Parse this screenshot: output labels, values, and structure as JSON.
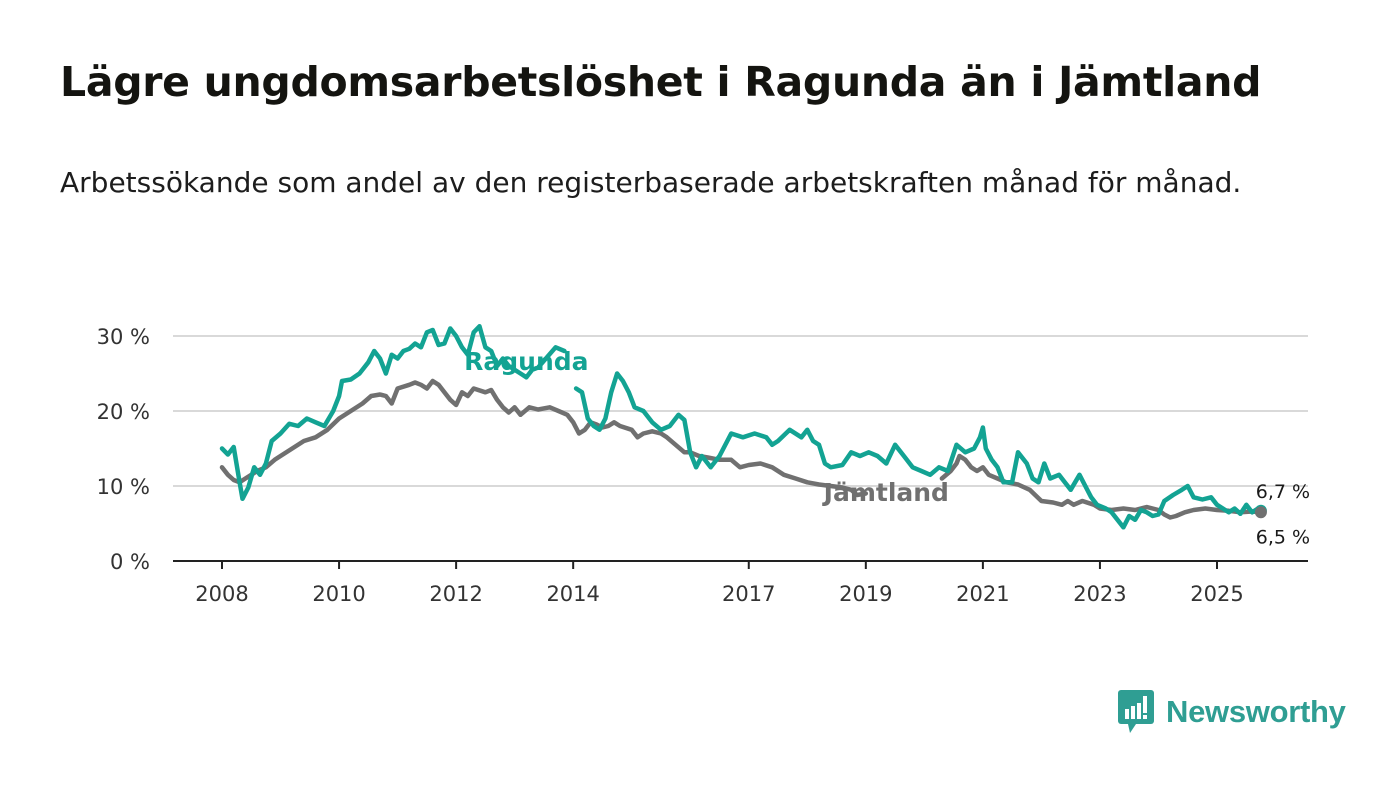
{
  "title": "Lägre ungdomsarbetslöshet i Ragunda än i Jämtland",
  "subtitle": "Arbetssökande som andel av den registerbaserade arbetskraften månad för månad.",
  "brand": {
    "name": "Newsworthy",
    "color": "#2f9e93",
    "icon": "bar-chart-speech-bubble-icon"
  },
  "colors": {
    "ragunda": "#13a393",
    "jamtland": "#707070",
    "grid": "#d9d9d9",
    "axis": "#222222"
  },
  "chart_data": {
    "type": "line",
    "title": "Lägre ungdomsarbetslöshet i Ragunda än i Jämtland",
    "xlabel": "",
    "ylabel": "",
    "xlim": [
      2007.4,
      2026.9
    ],
    "ylim": [
      0,
      30
    ],
    "x_ticks": [
      2008,
      2010,
      2012,
      2014,
      2017,
      2019,
      2021,
      2023,
      2025
    ],
    "y_ticks": [
      0,
      10,
      20,
      30
    ],
    "y_tick_labels": [
      "0 %",
      "10 %",
      "20 %",
      "30 %"
    ],
    "grid": true,
    "series": [
      {
        "name": "Ragunda",
        "label": "Ragunda",
        "end_label": "6,7 %",
        "points": [
          [
            2008.0,
            15.0
          ],
          [
            2008.1,
            14.2
          ],
          [
            2008.2,
            15.2
          ],
          [
            2008.3,
            10.5
          ],
          [
            2008.35,
            8.3
          ],
          [
            2008.45,
            9.8
          ],
          [
            2008.55,
            12.5
          ],
          [
            2008.65,
            11.5
          ],
          [
            2008.75,
            13.0
          ],
          [
            2008.85,
            16.0
          ],
          [
            2009.0,
            17.0
          ],
          [
            2009.15,
            18.3
          ],
          [
            2009.3,
            18.0
          ],
          [
            2009.45,
            19.0
          ],
          [
            2009.6,
            18.5
          ],
          [
            2009.75,
            18.0
          ],
          [
            2009.9,
            20.0
          ],
          [
            2010.0,
            22.0
          ],
          [
            2010.05,
            24.0
          ],
          [
            2010.2,
            24.2
          ],
          [
            2010.35,
            25.0
          ],
          [
            2010.5,
            26.5
          ],
          [
            2010.6,
            28.0
          ],
          [
            2010.7,
            27.0
          ],
          [
            2010.8,
            25.0
          ],
          [
            2010.9,
            27.5
          ],
          [
            2011.0,
            27.0
          ],
          [
            2011.1,
            28.0
          ],
          [
            2011.2,
            28.3
          ],
          [
            2011.3,
            29.0
          ],
          [
            2011.4,
            28.5
          ],
          [
            2011.5,
            30.5
          ],
          [
            2011.6,
            30.8
          ],
          [
            2011.7,
            28.8
          ],
          [
            2011.8,
            29.0
          ],
          [
            2011.9,
            31.0
          ],
          [
            2012.0,
            30.0
          ],
          [
            2012.1,
            28.5
          ],
          [
            2012.2,
            27.5
          ],
          [
            2012.3,
            30.5
          ],
          [
            2012.4,
            31.3
          ],
          [
            2012.5,
            28.5
          ],
          [
            2012.6,
            28.0
          ],
          [
            2012.7,
            26.0
          ],
          [
            2012.8,
            27.0
          ],
          [
            2012.9,
            26.0
          ],
          [
            2013.0,
            25.5
          ],
          [
            2013.1,
            25.0
          ],
          [
            2013.2,
            24.5
          ],
          [
            2013.3,
            25.5
          ],
          [
            2013.4,
            25.8
          ],
          [
            2013.7,
            28.5
          ],
          [
            2013.85,
            28.0
          ],
          [
            2014.0,
            27.0
          ],
          [
            2014.05,
            23.0
          ],
          [
            2014.15,
            22.5
          ],
          [
            2014.25,
            19.0
          ],
          [
            2014.35,
            18.0
          ],
          [
            2014.45,
            17.5
          ],
          [
            2014.55,
            19.0
          ],
          [
            2014.65,
            22.5
          ],
          [
            2014.75,
            25.0
          ],
          [
            2014.85,
            24.0
          ],
          [
            2014.95,
            22.5
          ],
          [
            2015.05,
            20.5
          ],
          [
            2015.2,
            20.0
          ],
          [
            2015.35,
            18.5
          ],
          [
            2015.5,
            17.5
          ],
          [
            2015.65,
            18.0
          ],
          [
            2015.8,
            19.5
          ],
          [
            2015.9,
            18.8
          ],
          [
            2016.0,
            14.5
          ],
          [
            2016.1,
            12.5
          ],
          [
            2016.2,
            14.0
          ],
          [
            2016.35,
            12.5
          ],
          [
            2016.5,
            14.0
          ],
          [
            2016.7,
            17.0
          ],
          [
            2016.9,
            16.5
          ],
          [
            2017.1,
            17.0
          ],
          [
            2017.3,
            16.5
          ],
          [
            2017.4,
            15.5
          ],
          [
            2017.5,
            16.0
          ],
          [
            2017.7,
            17.5
          ],
          [
            2017.9,
            16.5
          ],
          [
            2018.0,
            17.5
          ],
          [
            2018.1,
            16.0
          ],
          [
            2018.2,
            15.5
          ],
          [
            2018.3,
            13.0
          ],
          [
            2018.4,
            12.5
          ],
          [
            2018.6,
            12.8
          ],
          [
            2018.75,
            14.5
          ],
          [
            2018.9,
            14.0
          ],
          [
            2019.05,
            14.5
          ],
          [
            2019.2,
            14.0
          ],
          [
            2019.35,
            13.0
          ],
          [
            2019.5,
            15.5
          ],
          [
            2019.65,
            14.0
          ],
          [
            2019.8,
            12.5
          ],
          [
            2019.95,
            12.0
          ],
          [
            2020.1,
            11.5
          ],
          [
            2020.25,
            12.5
          ],
          [
            2020.4,
            12.0
          ],
          [
            2020.55,
            15.5
          ],
          [
            2020.7,
            14.5
          ],
          [
            2020.85,
            15.0
          ],
          [
            2020.95,
            16.5
          ],
          [
            2021.0,
            17.8
          ],
          [
            2021.05,
            15.0
          ],
          [
            2021.15,
            13.5
          ],
          [
            2021.25,
            12.5
          ],
          [
            2021.35,
            10.5
          ],
          [
            2021.5,
            10.5
          ],
          [
            2021.6,
            14.5
          ],
          [
            2021.75,
            13.0
          ],
          [
            2021.85,
            11.0
          ],
          [
            2021.95,
            10.5
          ],
          [
            2022.05,
            13.0
          ],
          [
            2022.15,
            11.0
          ],
          [
            2022.3,
            11.5
          ],
          [
            2022.4,
            10.5
          ],
          [
            2022.5,
            9.5
          ],
          [
            2022.65,
            11.5
          ],
          [
            2022.75,
            10.0
          ],
          [
            2022.85,
            8.5
          ],
          [
            2022.95,
            7.5
          ],
          [
            2023.1,
            7.0
          ],
          [
            2023.2,
            6.5
          ],
          [
            2023.3,
            5.5
          ],
          [
            2023.4,
            4.5
          ],
          [
            2023.5,
            6.0
          ],
          [
            2023.6,
            5.5
          ],
          [
            2023.7,
            6.8
          ],
          [
            2023.8,
            6.5
          ],
          [
            2023.9,
            6.0
          ],
          [
            2024.0,
            6.2
          ],
          [
            2024.1,
            8.0
          ],
          [
            2024.25,
            8.8
          ],
          [
            2024.4,
            9.5
          ],
          [
            2024.5,
            10.0
          ],
          [
            2024.6,
            8.5
          ],
          [
            2024.75,
            8.2
          ],
          [
            2024.9,
            8.5
          ],
          [
            2025.0,
            7.5
          ],
          [
            2025.1,
            7.0
          ],
          [
            2025.2,
            6.5
          ],
          [
            2025.3,
            7.0
          ],
          [
            2025.4,
            6.3
          ],
          [
            2025.5,
            7.5
          ],
          [
            2025.6,
            6.5
          ],
          [
            2025.7,
            7.0
          ],
          [
            2025.75,
            6.7
          ]
        ]
      },
      {
        "name": "Jämtland",
        "label": "Jämtland",
        "end_label": "6,5 %",
        "points": [
          [
            2008.0,
            12.5
          ],
          [
            2008.1,
            11.5
          ],
          [
            2008.2,
            10.8
          ],
          [
            2008.3,
            10.5
          ],
          [
            2008.4,
            11.0
          ],
          [
            2008.5,
            11.5
          ],
          [
            2008.6,
            12.0
          ],
          [
            2008.75,
            12.5
          ],
          [
            2008.9,
            13.5
          ],
          [
            2009.0,
            14.0
          ],
          [
            2009.2,
            15.0
          ],
          [
            2009.4,
            16.0
          ],
          [
            2009.6,
            16.5
          ],
          [
            2009.8,
            17.5
          ],
          [
            2010.0,
            19.0
          ],
          [
            2010.2,
            20.0
          ],
          [
            2010.4,
            21.0
          ],
          [
            2010.55,
            22.0
          ],
          [
            2010.7,
            22.2
          ],
          [
            2010.8,
            22.0
          ],
          [
            2010.9,
            21.0
          ],
          [
            2011.0,
            23.0
          ],
          [
            2011.2,
            23.5
          ],
          [
            2011.3,
            23.8
          ],
          [
            2011.4,
            23.5
          ],
          [
            2011.5,
            23.0
          ],
          [
            2011.6,
            24.0
          ],
          [
            2011.7,
            23.5
          ],
          [
            2011.8,
            22.5
          ],
          [
            2011.9,
            21.5
          ],
          [
            2012.0,
            20.8
          ],
          [
            2012.1,
            22.5
          ],
          [
            2012.2,
            22.0
          ],
          [
            2012.3,
            23.0
          ],
          [
            2012.5,
            22.5
          ],
          [
            2012.6,
            22.8
          ],
          [
            2012.7,
            21.5
          ],
          [
            2012.8,
            20.5
          ],
          [
            2012.9,
            19.8
          ],
          [
            2013.0,
            20.5
          ],
          [
            2013.1,
            19.5
          ],
          [
            2013.25,
            20.5
          ],
          [
            2013.4,
            20.2
          ],
          [
            2013.6,
            20.5
          ],
          [
            2013.75,
            20.0
          ],
          [
            2013.9,
            19.5
          ],
          [
            2014.0,
            18.5
          ],
          [
            2014.1,
            17.0
          ],
          [
            2014.2,
            17.5
          ],
          [
            2014.3,
            18.5
          ],
          [
            2014.4,
            18.2
          ],
          [
            2014.5,
            17.8
          ],
          [
            2014.6,
            18.0
          ],
          [
            2014.7,
            18.5
          ],
          [
            2014.8,
            18.0
          ],
          [
            2015.0,
            17.5
          ],
          [
            2015.1,
            16.5
          ],
          [
            2015.2,
            17.0
          ],
          [
            2015.35,
            17.3
          ],
          [
            2015.5,
            17.0
          ],
          [
            2015.6,
            16.5
          ],
          [
            2015.75,
            15.5
          ],
          [
            2015.9,
            14.5
          ],
          [
            2016.0,
            14.5
          ],
          [
            2016.15,
            14.0
          ],
          [
            2016.3,
            13.8
          ],
          [
            2016.5,
            13.5
          ],
          [
            2016.7,
            13.5
          ],
          [
            2016.85,
            12.5
          ],
          [
            2017.0,
            12.8
          ],
          [
            2017.2,
            13.0
          ],
          [
            2017.4,
            12.5
          ],
          [
            2017.6,
            11.5
          ],
          [
            2017.8,
            11.0
          ],
          [
            2018.0,
            10.5
          ],
          [
            2018.2,
            10.2
          ],
          [
            2018.4,
            10.0
          ],
          [
            2018.6,
            9.8
          ],
          [
            2018.75,
            9.5
          ],
          [
            2018.85,
            8.8
          ],
          [
            2019.0,
            9.0
          ],
          [
            2019.2,
            9.5
          ],
          [
            2019.35,
            8.8
          ],
          [
            2019.5,
            8.5
          ],
          [
            2019.65,
            8.0
          ],
          [
            2019.8,
            8.5
          ],
          [
            2019.95,
            9.0
          ],
          [
            2020.1,
            10.0
          ],
          [
            2020.3,
            11.0
          ],
          [
            2020.45,
            12.0
          ],
          [
            2020.55,
            13.0
          ],
          [
            2020.6,
            14.0
          ],
          [
            2020.7,
            13.5
          ],
          [
            2020.8,
            12.5
          ],
          [
            2020.9,
            12.0
          ],
          [
            2021.0,
            12.5
          ],
          [
            2021.1,
            11.5
          ],
          [
            2021.25,
            11.0
          ],
          [
            2021.4,
            10.5
          ],
          [
            2021.6,
            10.2
          ],
          [
            2021.8,
            9.5
          ],
          [
            2022.0,
            8.0
          ],
          [
            2022.2,
            7.8
          ],
          [
            2022.35,
            7.5
          ],
          [
            2022.45,
            8.0
          ],
          [
            2022.55,
            7.5
          ],
          [
            2022.7,
            8.0
          ],
          [
            2022.9,
            7.5
          ],
          [
            2023.0,
            7.0
          ],
          [
            2023.2,
            6.8
          ],
          [
            2023.4,
            7.0
          ],
          [
            2023.6,
            6.8
          ],
          [
            2023.8,
            7.2
          ],
          [
            2024.0,
            6.8
          ],
          [
            2024.1,
            6.2
          ],
          [
            2024.2,
            5.8
          ],
          [
            2024.3,
            6.0
          ],
          [
            2024.45,
            6.5
          ],
          [
            2024.6,
            6.8
          ],
          [
            2024.8,
            7.0
          ],
          [
            2025.0,
            6.8
          ],
          [
            2025.2,
            6.7
          ],
          [
            2025.4,
            6.5
          ],
          [
            2025.6,
            6.6
          ],
          [
            2025.75,
            6.5
          ]
        ]
      }
    ]
  }
}
